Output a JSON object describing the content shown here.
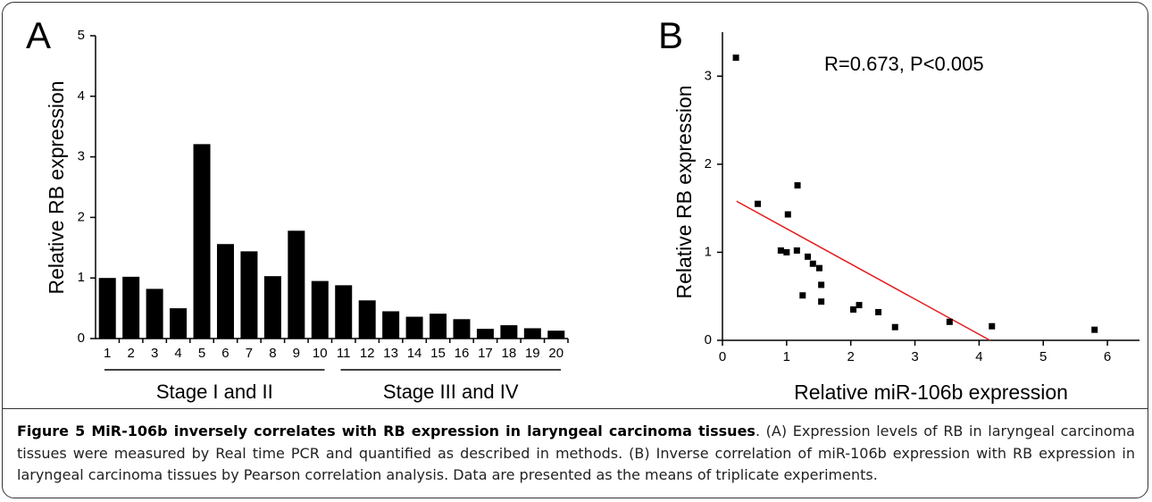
{
  "chart_data": [
    {
      "type": "bar",
      "panel": "A",
      "ylabel": "Relative RB expression",
      "categories": [
        "1",
        "2",
        "3",
        "4",
        "5",
        "6",
        "7",
        "8",
        "9",
        "10",
        "11",
        "12",
        "13",
        "14",
        "15",
        "16",
        "17",
        "18",
        "19",
        "20"
      ],
      "values": [
        1.0,
        1.02,
        0.82,
        0.5,
        3.21,
        1.56,
        1.44,
        1.03,
        1.78,
        0.95,
        0.88,
        0.63,
        0.45,
        0.36,
        0.41,
        0.32,
        0.16,
        0.22,
        0.17,
        0.13
      ],
      "color": "#000000",
      "ylim": [
        0,
        5
      ],
      "yticks": [
        0,
        1,
        2,
        3,
        4,
        5
      ],
      "annotations": [
        "Stage I and II",
        "Stage III and IV"
      ]
    },
    {
      "type": "scatter",
      "panel": "B",
      "xlabel": "Relative miR-106b expression",
      "ylabel": "Relative RB expression",
      "x": [
        0.21,
        0.55,
        1.02,
        1.17,
        0.91,
        1.0,
        1.16,
        1.33,
        1.41,
        1.51,
        1.54,
        1.25,
        1.54,
        2.04,
        2.13,
        2.43,
        2.69,
        3.54,
        4.2,
        5.8
      ],
      "values": [
        3.21,
        1.55,
        1.43,
        1.76,
        1.02,
        1.0,
        1.02,
        0.95,
        0.87,
        0.82,
        0.63,
        0.51,
        0.44,
        0.35,
        0.4,
        0.32,
        0.15,
        0.21,
        0.16,
        0.12
      ],
      "color": "#000000",
      "fit_line": {
        "color": "#e31a1c",
        "x": [
          0.22,
          4.17
        ],
        "y": [
          1.58,
          0
        ]
      },
      "xlim": [
        0,
        6.5
      ],
      "xticks": [
        0,
        1,
        2,
        3,
        4,
        5,
        6
      ],
      "ylim": [
        0,
        3.5
      ],
      "yticks": [
        0,
        1,
        2,
        3
      ],
      "annotation": "R=0.673, P<0.005"
    }
  ],
  "caption": {
    "title": "Figure 5 MiR-106b inversely correlates with RB expression in laryngeal carcinoma tissues",
    "text": ". (A) Expression levels of RB in laryngeal carcinoma tissues were measured by Real time PCR and quantified as described in methods. (B) Inverse correlation of miR-106b expression with RB expression in laryngeal carcinoma tissues by Pearson correlation analysis. Data are presented as the means of triplicate experiments."
  }
}
